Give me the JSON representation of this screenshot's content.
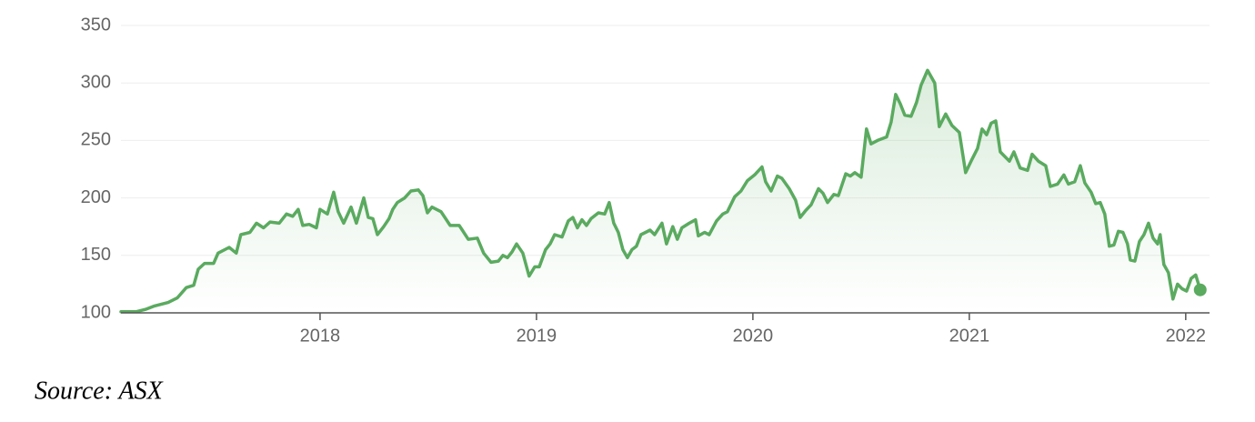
{
  "chart_data": {
    "type": "line",
    "source": "Source: ASX",
    "color": "#5aaa5f",
    "grid": true,
    "area": true,
    "xlim": [
      2017.08,
      2022.11
    ],
    "xticks": [
      2018,
      2019,
      2020,
      2021,
      2022
    ],
    "ylim": [
      100,
      350
    ],
    "yticks": [
      100,
      150,
      200,
      250,
      300,
      350
    ],
    "x": [
      2017.08,
      2017.151,
      2017.193,
      2017.235,
      2017.298,
      2017.34,
      2017.382,
      2017.416,
      2017.437,
      2017.466,
      2017.508,
      2017.529,
      2017.58,
      2017.613,
      2017.634,
      2017.676,
      2017.706,
      2017.739,
      2017.769,
      2017.811,
      2017.845,
      2017.874,
      2017.899,
      2017.92,
      2017.95,
      2017.983,
      2018.0,
      2018.034,
      2018.063,
      2018.084,
      2018.109,
      2018.143,
      2018.168,
      2018.202,
      2018.223,
      2018.244,
      2018.265,
      2018.294,
      2018.319,
      2018.336,
      2018.357,
      2018.391,
      2018.42,
      2018.454,
      2018.475,
      2018.496,
      2018.517,
      2018.559,
      2018.601,
      2018.643,
      2018.685,
      2018.727,
      2018.756,
      2018.79,
      2018.824,
      2018.845,
      2018.866,
      2018.887,
      2018.908,
      2018.937,
      2018.966,
      2018.992,
      2019.013,
      2019.042,
      2019.063,
      2019.084,
      2019.118,
      2019.147,
      2019.168,
      2019.189,
      2019.21,
      2019.231,
      2019.252,
      2019.286,
      2019.315,
      2019.336,
      2019.357,
      2019.378,
      2019.399,
      2019.42,
      2019.441,
      2019.462,
      2019.483,
      2019.525,
      2019.546,
      2019.58,
      2019.601,
      2019.63,
      2019.651,
      2019.672,
      2019.706,
      2019.735,
      2019.748,
      2019.777,
      2019.798,
      2019.832,
      2019.861,
      2019.882,
      2019.916,
      2019.945,
      2019.975,
      2020.008,
      2020.042,
      2020.059,
      2020.084,
      2020.113,
      2020.134,
      2020.168,
      2020.197,
      2020.218,
      2020.244,
      2020.269,
      2020.303,
      2020.324,
      2020.345,
      2020.374,
      2020.395,
      2020.429,
      2020.45,
      2020.471,
      2020.5,
      2020.525,
      2020.546,
      2020.576,
      2020.618,
      2020.639,
      2020.66,
      2020.681,
      2020.702,
      2020.731,
      2020.756,
      2020.777,
      2020.807,
      2020.84,
      2020.861,
      2020.891,
      2020.92,
      2020.954,
      2020.983,
      2021.008,
      2021.038,
      2021.059,
      2021.08,
      2021.101,
      2021.122,
      2021.143,
      2021.185,
      2021.206,
      2021.235,
      2021.269,
      2021.29,
      2021.319,
      2021.353,
      2021.374,
      2021.408,
      2021.437,
      2021.458,
      2021.487,
      2021.513,
      2021.534,
      2021.563,
      2021.584,
      2021.605,
      2021.626,
      2021.647,
      2021.668,
      2021.689,
      2021.71,
      2021.731,
      2021.744,
      2021.765,
      2021.786,
      2021.807,
      2021.828,
      2021.849,
      2021.87,
      2021.882,
      2021.899,
      2021.92,
      2021.941,
      2021.962,
      2021.983,
      2022.004,
      2022.025,
      2022.046,
      2022.067
    ],
    "values": [
      101,
      101,
      103,
      106,
      109,
      113,
      122,
      124,
      138,
      143,
      143,
      152,
      157,
      152,
      168,
      170,
      178,
      174,
      179,
      178,
      186,
      184,
      190,
      176,
      177,
      174,
      190,
      186,
      205,
      188,
      178,
      192,
      178,
      200,
      183,
      182,
      168,
      175,
      182,
      190,
      196,
      200,
      206,
      207,
      202,
      187,
      192,
      188,
      176,
      176,
      164,
      165,
      152,
      144,
      145,
      150,
      148,
      153,
      160,
      152,
      132,
      140,
      140,
      155,
      160,
      168,
      166,
      180,
      183,
      174,
      181,
      176,
      182,
      187,
      186,
      196,
      178,
      170,
      155,
      148,
      155,
      158,
      168,
      172,
      168,
      178,
      160,
      175,
      164,
      174,
      178,
      181,
      167,
      170,
      168,
      180,
      186,
      188,
      201,
      206,
      215,
      220,
      227,
      214,
      206,
      219,
      217,
      208,
      198,
      183,
      189,
      194,
      208,
      204,
      196,
      203,
      202,
      221,
      219,
      222,
      218,
      260,
      247,
      250,
      253,
      266,
      290,
      282,
      272,
      271,
      283,
      298,
      311,
      300,
      262,
      273,
      263,
      257,
      222,
      232,
      243,
      260,
      255,
      265,
      267,
      240,
      232,
      240,
      226,
      224,
      238,
      232,
      228,
      210,
      212,
      220,
      212,
      214,
      228,
      213,
      205,
      195,
      196,
      186,
      158,
      159,
      171,
      170,
      160,
      146,
      145,
      162,
      168,
      178,
      165,
      160,
      168,
      142,
      135,
      112,
      125,
      121,
      119,
      130,
      133,
      120
    ]
  }
}
